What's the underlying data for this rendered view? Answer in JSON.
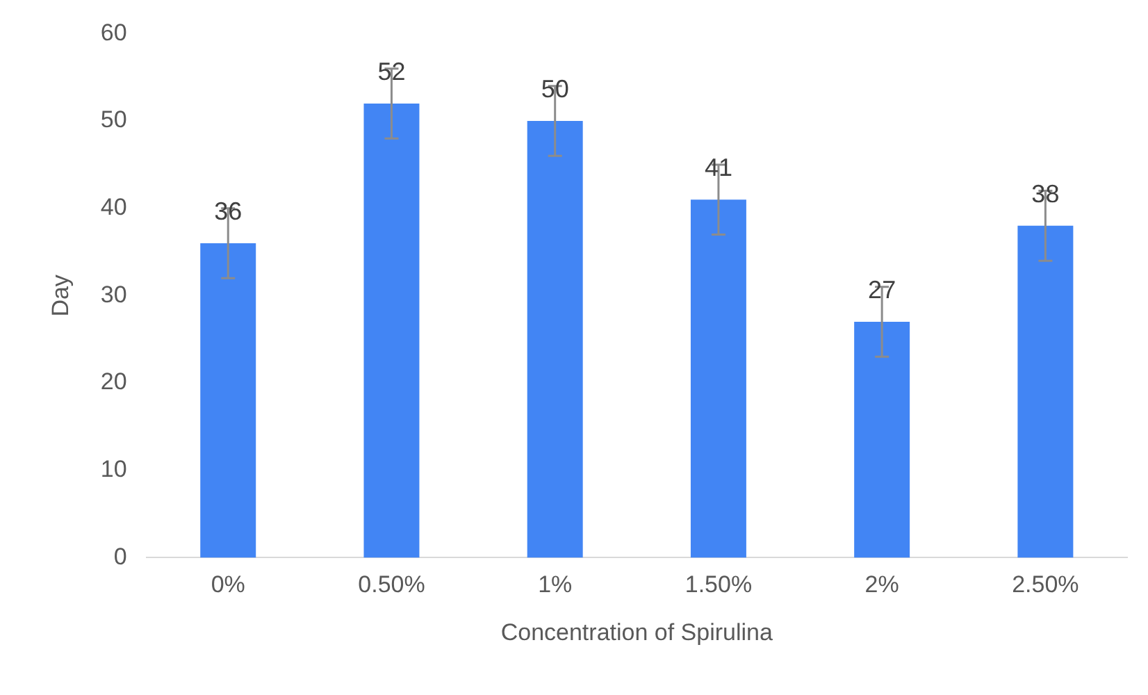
{
  "chart_data": {
    "type": "bar",
    "xlabel": "Concentration of Spirulina",
    "ylabel": "Day",
    "categories": [
      "0%",
      "0.50%",
      "1%",
      "1.50%",
      "2%",
      "2.50%"
    ],
    "values": [
      36,
      52,
      50,
      41,
      27,
      38
    ],
    "errors": [
      4,
      4,
      4,
      4,
      4,
      4
    ],
    "color": "#4285f4",
    "ylim": [
      0,
      60
    ],
    "yticks": [
      0,
      10,
      20,
      30,
      40,
      50,
      60
    ],
    "grid": false,
    "legend": false,
    "data_labels": true
  }
}
